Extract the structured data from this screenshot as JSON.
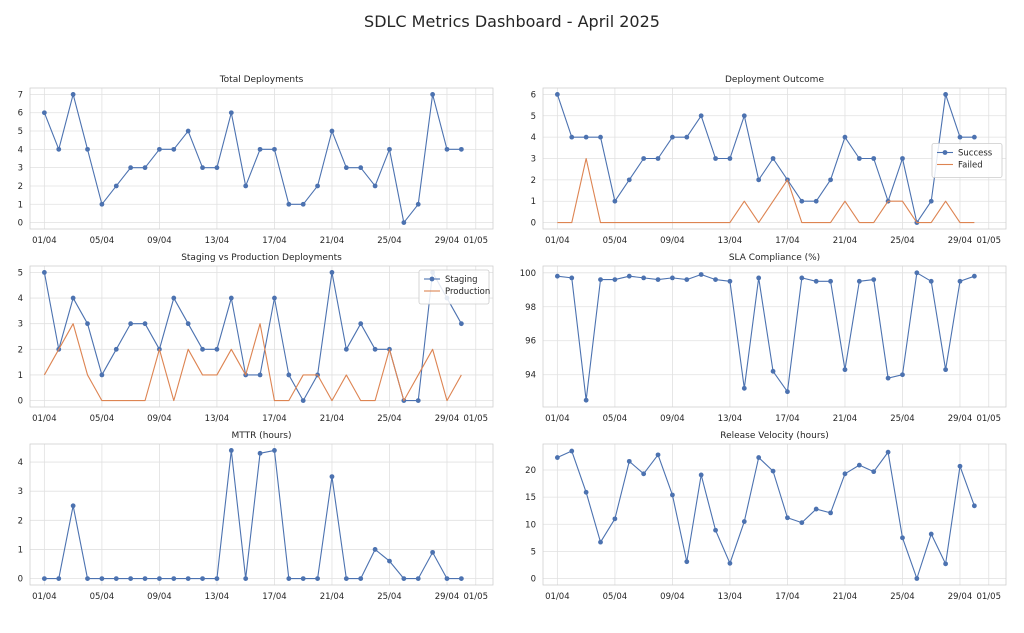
{
  "title": "SDLC Metrics Dashboard - April 2025",
  "colors": {
    "blue": "#4c72b0",
    "orange": "#dd8452",
    "grid": "#e1e1e1",
    "spine": "#d0d0d0"
  },
  "x_tick_labels": [
    "01/04",
    "05/04",
    "09/04",
    "13/04",
    "17/04",
    "21/04",
    "25/04",
    "29/04",
    "01/05"
  ],
  "chart_data": [
    {
      "type": "line",
      "title": "Total Deployments",
      "xlabel": "",
      "ylabel": "",
      "grid": true,
      "x": [
        "01/04",
        "02/04",
        "03/04",
        "04/04",
        "05/04",
        "06/04",
        "07/04",
        "08/04",
        "09/04",
        "10/04",
        "11/04",
        "12/04",
        "13/04",
        "14/04",
        "15/04",
        "16/04",
        "17/04",
        "18/04",
        "19/04",
        "20/04",
        "21/04",
        "22/04",
        "23/04",
        "24/04",
        "25/04",
        "26/04",
        "27/04",
        "28/04",
        "29/04",
        "30/04"
      ],
      "ylim": [
        -0.35,
        7.35
      ],
      "yticks": [
        0,
        1,
        2,
        3,
        4,
        5,
        6,
        7
      ],
      "series": [
        {
          "values": [
            6,
            4,
            7,
            4,
            1,
            2,
            3,
            3,
            4,
            4,
            5,
            3,
            3,
            6,
            2,
            4,
            4,
            1,
            1,
            2,
            5,
            3,
            3,
            2,
            4,
            0,
            1,
            7,
            4,
            4
          ],
          "color": "#4c72b0",
          "marker": "circle"
        }
      ]
    },
    {
      "type": "line",
      "title": "Deployment Outcome",
      "xlabel": "",
      "ylabel": "",
      "grid": true,
      "legend": "center-right",
      "x": [
        "01/04",
        "02/04",
        "03/04",
        "04/04",
        "05/04",
        "06/04",
        "07/04",
        "08/04",
        "09/04",
        "10/04",
        "11/04",
        "12/04",
        "13/04",
        "14/04",
        "15/04",
        "16/04",
        "17/04",
        "18/04",
        "19/04",
        "20/04",
        "21/04",
        "22/04",
        "23/04",
        "24/04",
        "25/04",
        "26/04",
        "27/04",
        "28/04",
        "29/04",
        "30/04"
      ],
      "ylim": [
        -0.3,
        6.3
      ],
      "yticks": [
        0,
        1,
        2,
        3,
        4,
        5,
        6
      ],
      "series": [
        {
          "name": "Success",
          "values": [
            6,
            4,
            4,
            4,
            1,
            2,
            3,
            3,
            4,
            4,
            5,
            3,
            3,
            5,
            2,
            3,
            2,
            1,
            1,
            2,
            4,
            3,
            3,
            1,
            3,
            0,
            1,
            6,
            4,
            4
          ],
          "color": "#4c72b0",
          "marker": "circle"
        },
        {
          "name": "Failed",
          "values": [
            0,
            0,
            3,
            0,
            0,
            0,
            0,
            0,
            0,
            0,
            0,
            0,
            0,
            1,
            0,
            1,
            2,
            0,
            0,
            0,
            1,
            0,
            0,
            1,
            1,
            0,
            0,
            1,
            0,
            0
          ],
          "color": "#dd8452",
          "marker": "none"
        }
      ]
    },
    {
      "type": "line",
      "title": "Staging vs Production Deployments",
      "xlabel": "",
      "ylabel": "",
      "grid": true,
      "legend": "top-right",
      "x": [
        "01/04",
        "02/04",
        "03/04",
        "04/04",
        "05/04",
        "06/04",
        "07/04",
        "08/04",
        "09/04",
        "10/04",
        "11/04",
        "12/04",
        "13/04",
        "14/04",
        "15/04",
        "16/04",
        "17/04",
        "18/04",
        "19/04",
        "20/04",
        "21/04",
        "22/04",
        "23/04",
        "24/04",
        "25/04",
        "26/04",
        "27/04",
        "28/04",
        "29/04",
        "30/04"
      ],
      "ylim": [
        -0.25,
        5.25
      ],
      "yticks": [
        0,
        1,
        2,
        3,
        4,
        5
      ],
      "series": [
        {
          "name": "Staging",
          "values": [
            5,
            2,
            4,
            3,
            1,
            2,
            3,
            3,
            2,
            4,
            3,
            2,
            2,
            4,
            1,
            1,
            4,
            1,
            0,
            1,
            5,
            2,
            3,
            2,
            2,
            0,
            0,
            5,
            4,
            3
          ],
          "color": "#4c72b0",
          "marker": "circle"
        },
        {
          "name": "Production",
          "values": [
            1,
            2,
            3,
            1,
            0,
            0,
            0,
            0,
            2,
            0,
            2,
            1,
            1,
            2,
            1,
            3,
            0,
            0,
            1,
            1,
            0,
            1,
            0,
            0,
            2,
            0,
            1,
            2,
            0,
            1
          ],
          "color": "#dd8452",
          "marker": "none"
        }
      ]
    },
    {
      "type": "line",
      "title": "SLA Compliance (%)",
      "xlabel": "",
      "ylabel": "",
      "grid": true,
      "x": [
        "01/04",
        "02/04",
        "03/04",
        "04/04",
        "05/04",
        "06/04",
        "07/04",
        "08/04",
        "09/04",
        "10/04",
        "11/04",
        "12/04",
        "13/04",
        "14/04",
        "15/04",
        "16/04",
        "17/04",
        "18/04",
        "19/04",
        "20/04",
        "21/04",
        "22/04",
        "23/04",
        "24/04",
        "25/04",
        "26/04",
        "27/04",
        "28/04",
        "29/04",
        "30/04"
      ],
      "ylim": [
        92.1,
        100.4
      ],
      "yticks": [
        94,
        96,
        98,
        100
      ],
      "series": [
        {
          "values": [
            99.8,
            99.7,
            92.5,
            99.6,
            99.6,
            99.8,
            99.7,
            99.6,
            99.7,
            99.6,
            99.9,
            99.6,
            99.5,
            93.2,
            99.7,
            94.2,
            93.0,
            99.7,
            99.5,
            99.5,
            94.3,
            99.5,
            99.6,
            93.8,
            94.0,
            100.0,
            99.5,
            94.3,
            99.5,
            99.8
          ],
          "color": "#4c72b0",
          "marker": "circle"
        }
      ]
    },
    {
      "type": "line",
      "title": "MTTR (hours)",
      "xlabel": "",
      "ylabel": "",
      "grid": true,
      "x": [
        "01/04",
        "02/04",
        "03/04",
        "04/04",
        "05/04",
        "06/04",
        "07/04",
        "08/04",
        "09/04",
        "10/04",
        "11/04",
        "12/04",
        "13/04",
        "14/04",
        "15/04",
        "16/04",
        "17/04",
        "18/04",
        "19/04",
        "20/04",
        "21/04",
        "22/04",
        "23/04",
        "24/04",
        "25/04",
        "26/04",
        "27/04",
        "28/04",
        "29/04",
        "30/04"
      ],
      "ylim": [
        -0.22,
        4.62
      ],
      "yticks": [
        0,
        1,
        2,
        3,
        4
      ],
      "series": [
        {
          "values": [
            0,
            0,
            2.5,
            0,
            0,
            0,
            0,
            0,
            0,
            0,
            0,
            0,
            0,
            4.4,
            0,
            4.3,
            4.4,
            0,
            0,
            0,
            3.5,
            0,
            0,
            1.0,
            0.6,
            0,
            0,
            0.9,
            0,
            0
          ],
          "color": "#4c72b0",
          "marker": "circle"
        }
      ]
    },
    {
      "type": "line",
      "title": "Release Velocity (hours)",
      "xlabel": "",
      "ylabel": "",
      "grid": true,
      "x": [
        "01/04",
        "02/04",
        "03/04",
        "04/04",
        "05/04",
        "06/04",
        "07/04",
        "08/04",
        "09/04",
        "10/04",
        "11/04",
        "12/04",
        "13/04",
        "14/04",
        "15/04",
        "16/04",
        "17/04",
        "18/04",
        "19/04",
        "20/04",
        "21/04",
        "22/04",
        "23/04",
        "24/04",
        "25/04",
        "26/04",
        "27/04",
        "28/04",
        "29/04",
        "30/04"
      ],
      "ylim": [
        -1.2,
        24.8
      ],
      "yticks": [
        0,
        5,
        10,
        15,
        20
      ],
      "series": [
        {
          "values": [
            22.3,
            23.5,
            15.9,
            6.7,
            11.0,
            21.6,
            19.3,
            22.8,
            15.4,
            3.1,
            19.1,
            8.9,
            2.8,
            10.5,
            22.3,
            19.8,
            11.2,
            10.3,
            12.8,
            12.1,
            19.3,
            20.9,
            19.7,
            23.3,
            7.5,
            0.0,
            8.2,
            2.7,
            20.7,
            13.4
          ],
          "color": "#4c72b0",
          "marker": "circle"
        }
      ]
    }
  ]
}
